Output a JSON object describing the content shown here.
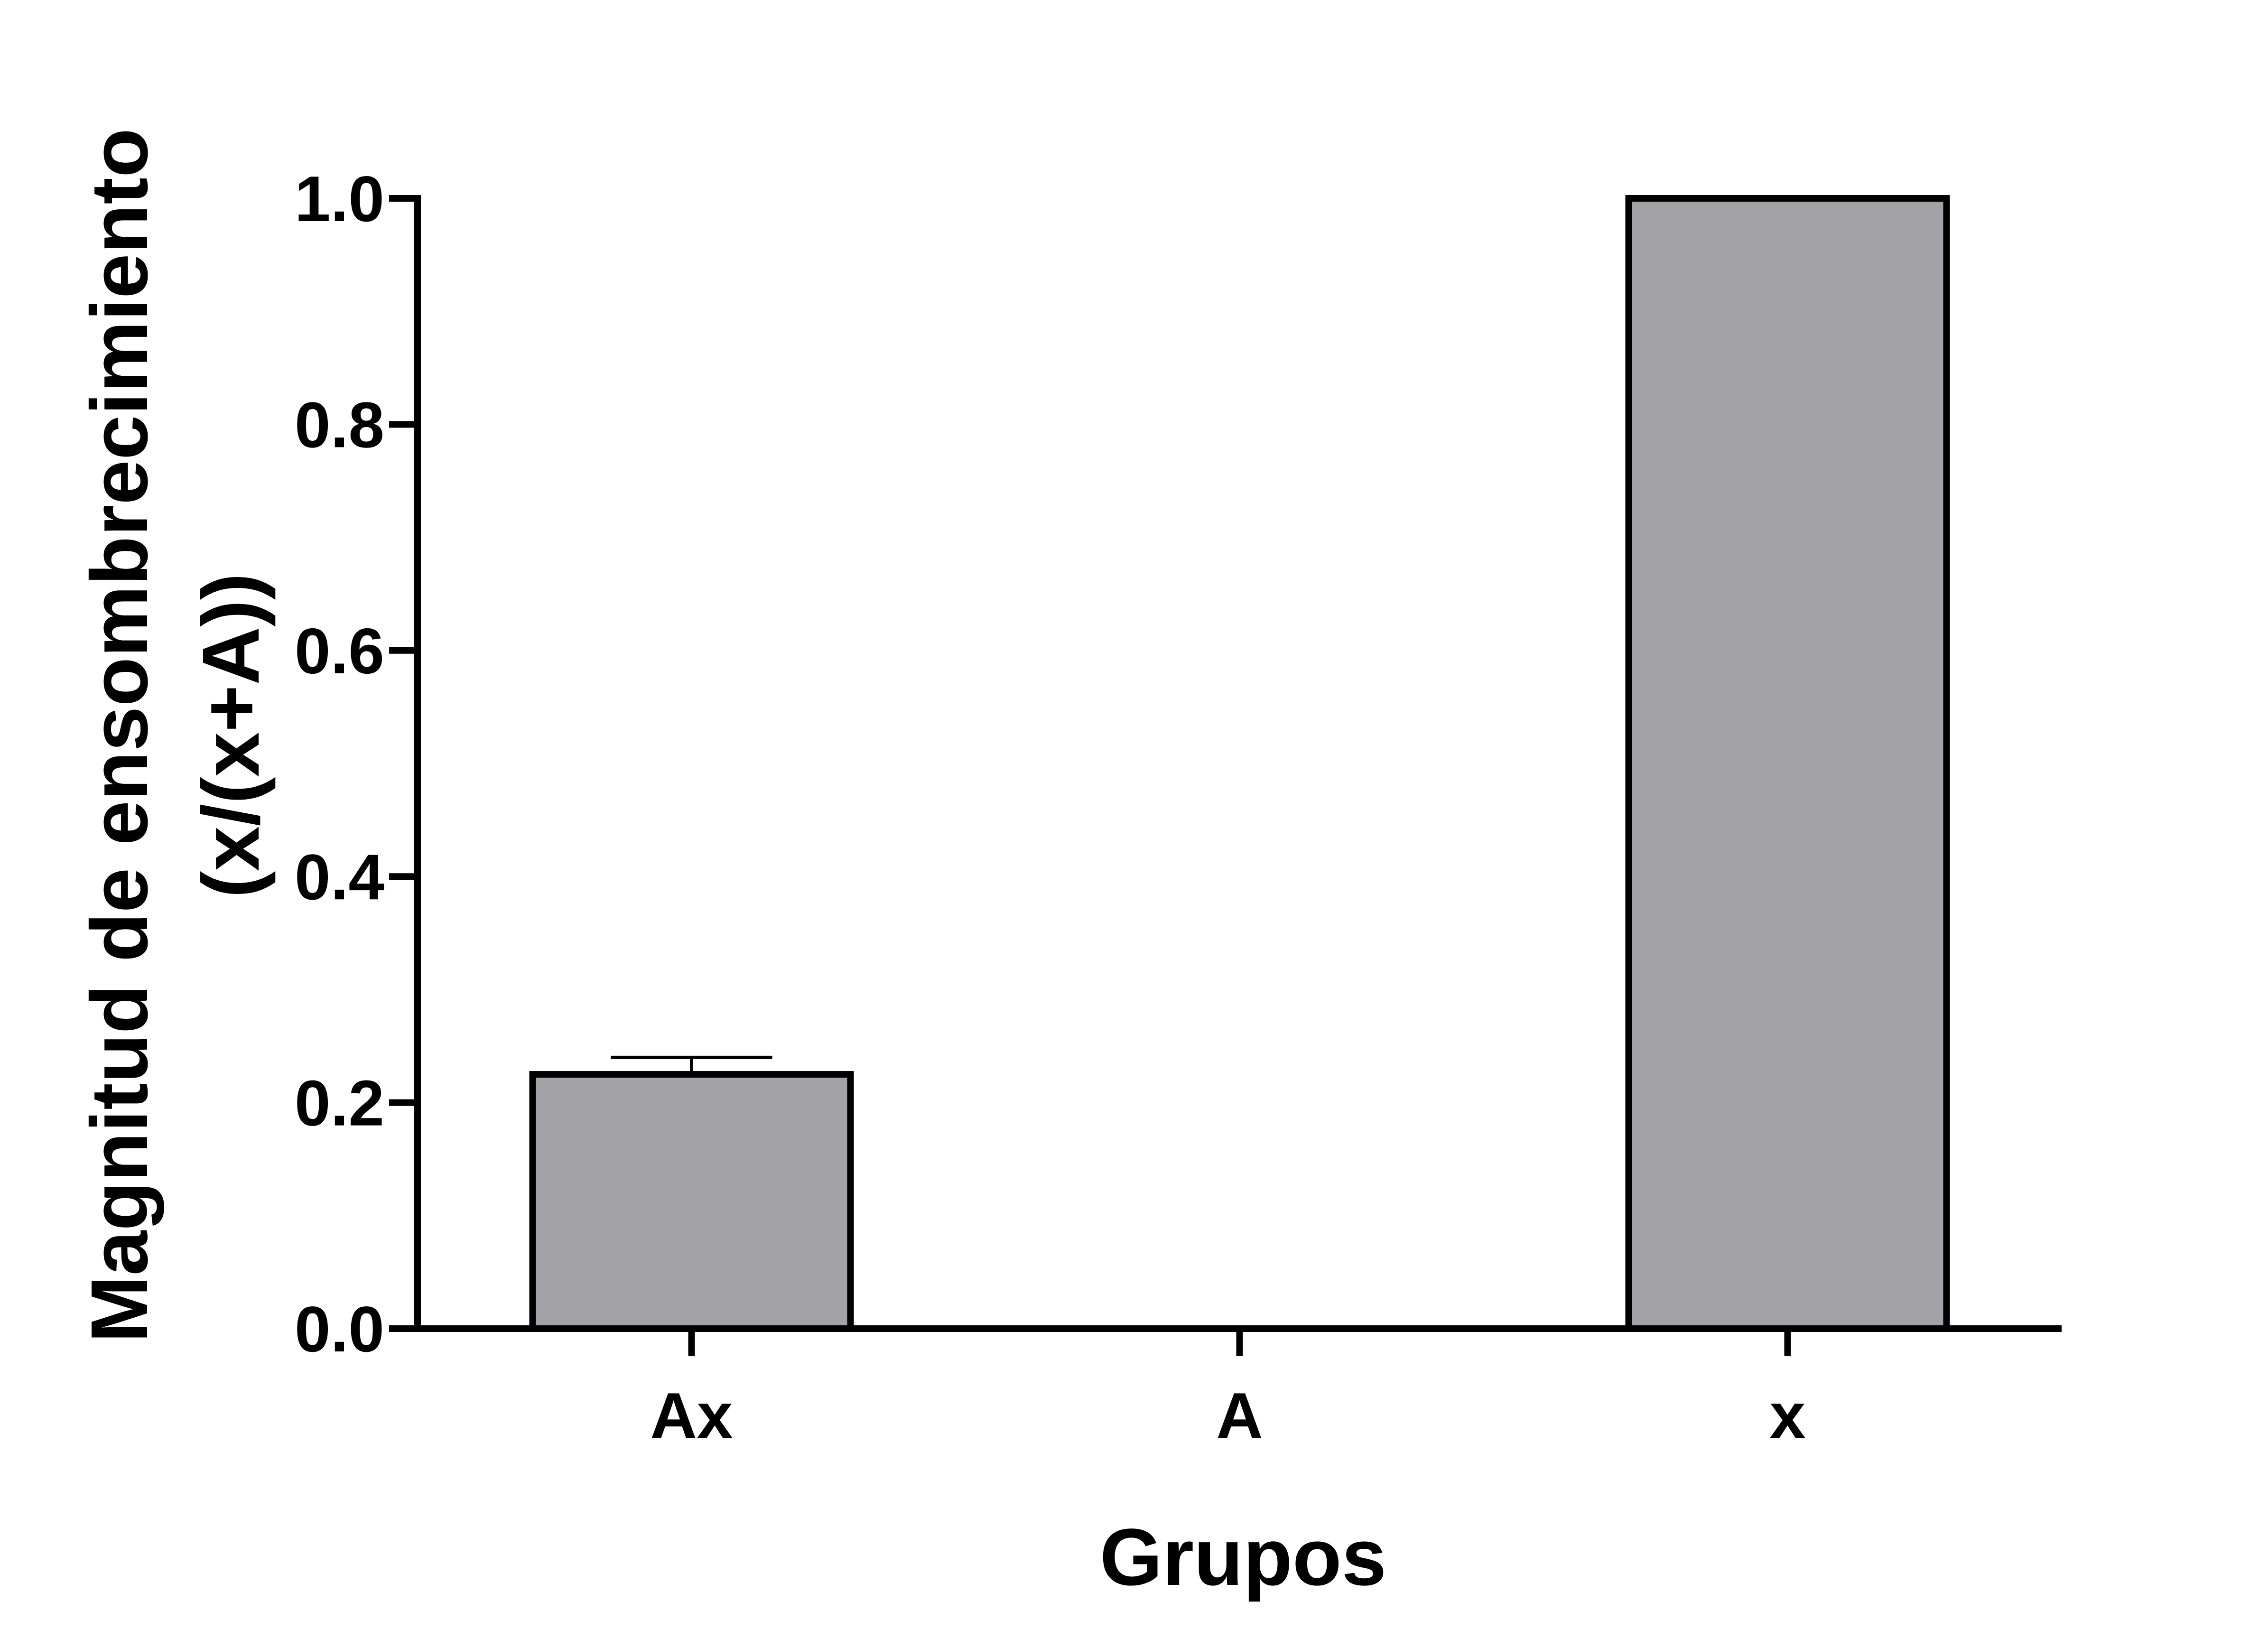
{
  "chart_data": {
    "type": "bar",
    "title": "",
    "xlabel": "Grupos",
    "ylabel_line1": "Magnitud de ensombrecimiento",
    "ylabel_line2": "(x/(x+A))",
    "categories": [
      "Ax",
      "A",
      "x"
    ],
    "values": [
      0.225,
      0.0,
      1.0
    ],
    "error_bars": [
      0.015,
      null,
      null
    ],
    "ylim": [
      0,
      1.0
    ],
    "yticks": [
      0.0,
      0.2,
      0.4,
      0.6,
      0.8,
      1.0
    ],
    "ytick_labels": [
      "0.0",
      "0.2",
      "0.4",
      "0.6",
      "0.8",
      "1.0"
    ],
    "grid": false,
    "legend": "none",
    "colors": {
      "bar_fill": "#a3a2a7",
      "stroke": "#000000"
    }
  }
}
